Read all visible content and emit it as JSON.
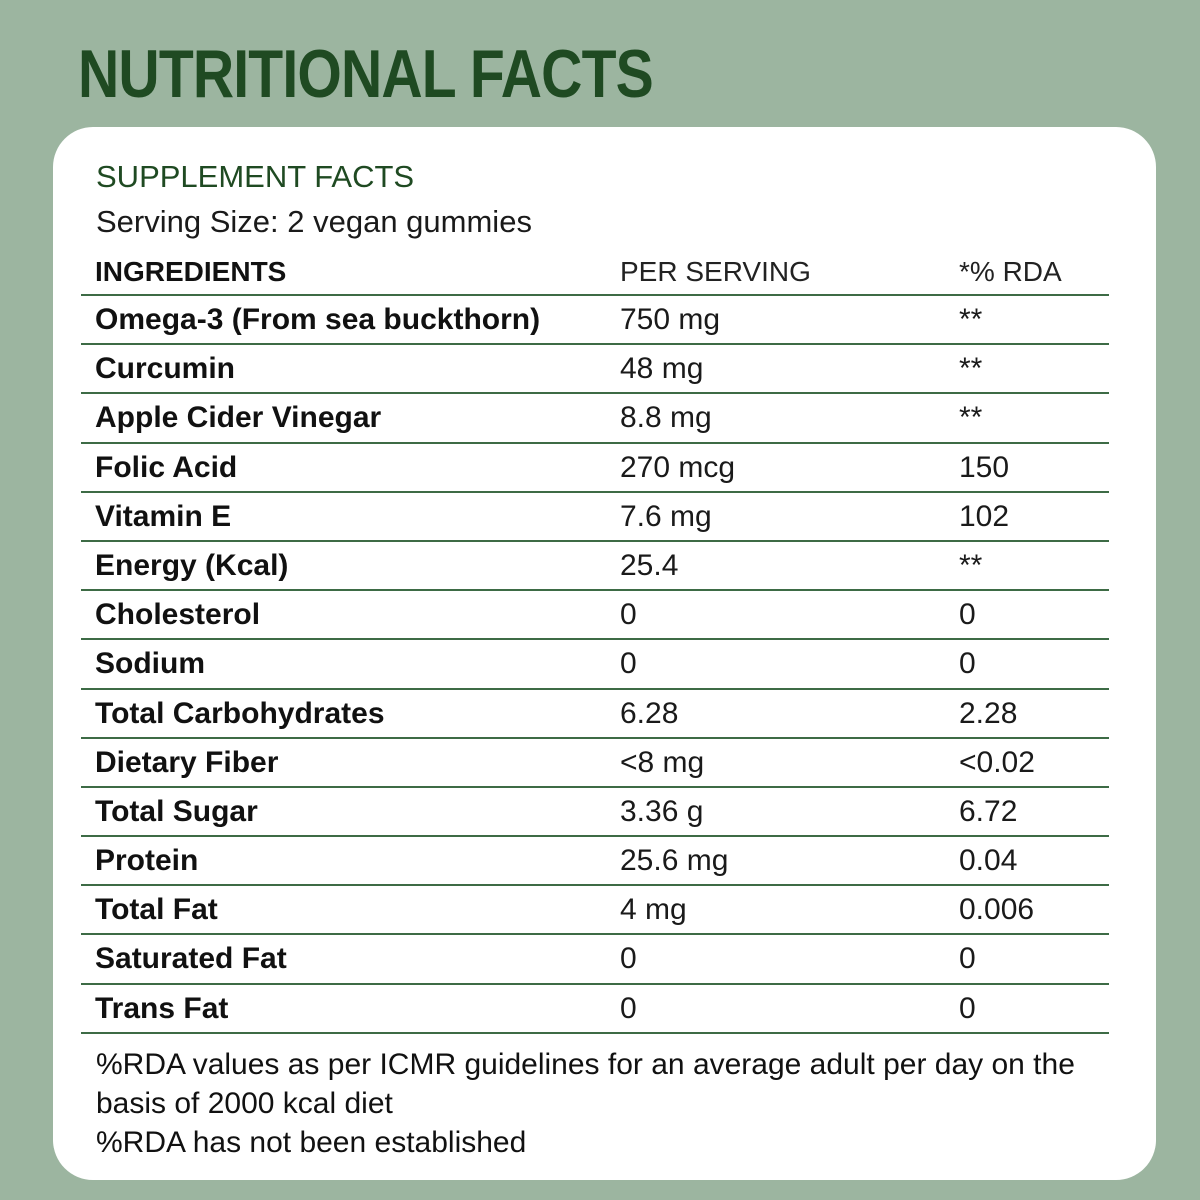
{
  "page": {
    "title": "NUTRITIONAL FACTS",
    "background_color": "#9cb5a0",
    "accent_color": "#1f4a22"
  },
  "facts": {
    "heading": "SUPPLEMENT FACTS",
    "serving_size": "Serving Size: 2 vegan gummies",
    "columns": [
      "INGREDIENTS",
      "PER SERVING",
      "*% RDA"
    ],
    "rows": [
      [
        "Omega-3 (From sea buckthorn)",
        "750 mg",
        "**"
      ],
      [
        "Curcumin",
        "48 mg",
        "**"
      ],
      [
        "Apple Cider Vinegar",
        "8.8 mg",
        "**"
      ],
      [
        "Folic Acid",
        "270 mcg",
        "150"
      ],
      [
        "Vitamin E",
        "7.6 mg",
        "102"
      ],
      [
        "Energy (Kcal)",
        "25.4",
        "**"
      ],
      [
        "Cholesterol",
        "0",
        "0"
      ],
      [
        "Sodium",
        "0",
        "0"
      ],
      [
        "Total Carbohydrates",
        "6.28",
        "2.28"
      ],
      [
        "Dietary Fiber",
        "<8 mg",
        "<0.02"
      ],
      [
        "Total Sugar",
        "3.36 g",
        "6.72"
      ],
      [
        "Protein",
        "25.6 mg",
        "0.04"
      ],
      [
        "Total Fat",
        "4 mg",
        "0.006"
      ],
      [
        "Saturated Fat",
        "0",
        "0"
      ],
      [
        "Trans Fat",
        "0",
        "0"
      ]
    ],
    "footnote_1": "%RDA values as per ICMR guidelines for an average adult per day on the basis of 2000 kcal diet",
    "footnote_2": "%RDA has not been established"
  }
}
